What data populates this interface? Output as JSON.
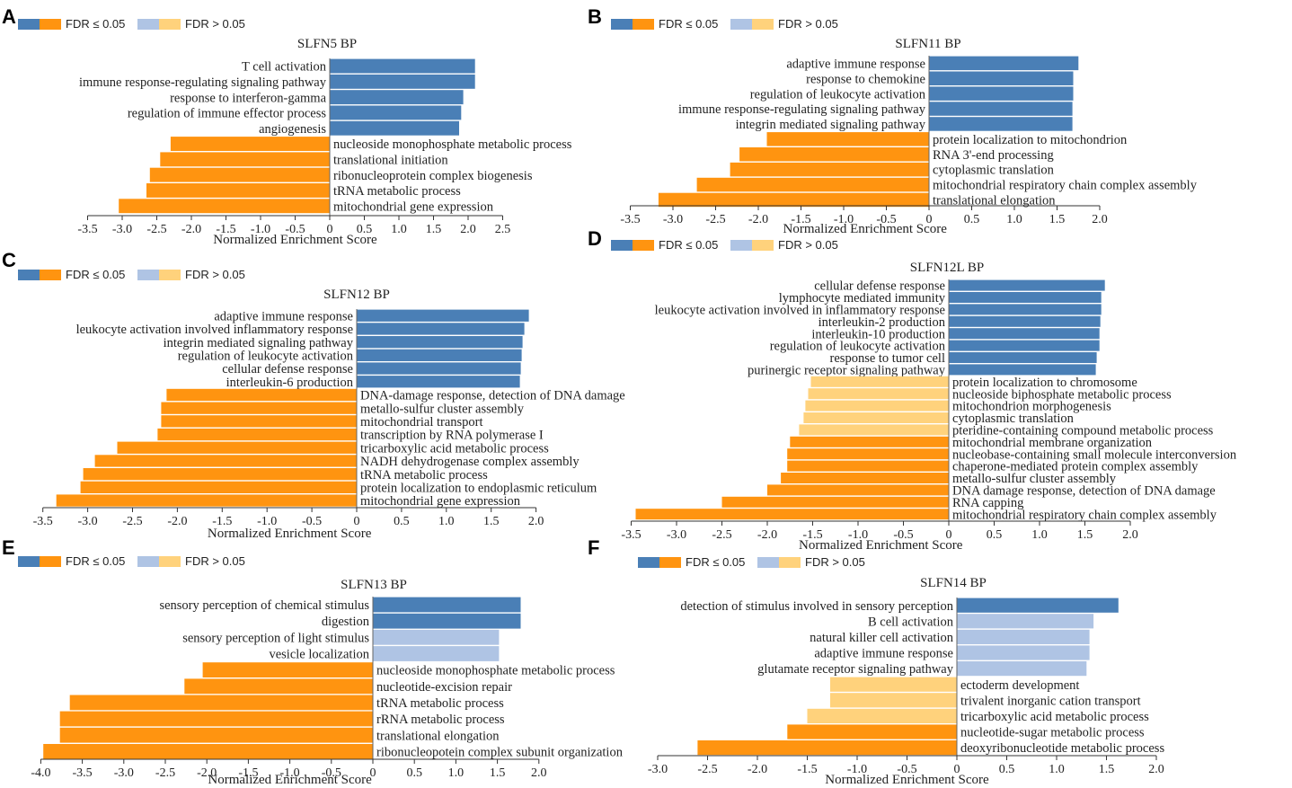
{
  "colors": {
    "blue_sig": "#4a7fb6",
    "orange_sig": "#ff9410",
    "blue_nonsig": "#afc4e4",
    "orange_nonsig": "#ffd27c"
  },
  "legend": {
    "sig_label": "FDR ≤ 0.05",
    "nonsig_label": "FDR > 0.05"
  },
  "chart_data": [
    {
      "panel": "A",
      "type": "bar",
      "orientation": "horizontal",
      "title": "SLFN5 BP",
      "xlabel": "Normalized Enrichment Score",
      "xlim": [
        -3.5,
        2.5
      ],
      "xticks": [
        -3.5,
        -3.0,
        -2.5,
        -2.0,
        -1.5,
        -1.0,
        -0.5,
        0,
        0.5,
        1.0,
        1.5,
        2.0,
        2.5
      ],
      "bars": [
        {
          "term": "T cell activation",
          "nes": 2.1,
          "significant": true
        },
        {
          "term": "immune response-regulating signaling pathway",
          "nes": 2.1,
          "significant": true
        },
        {
          "term": "response to interferon-gamma",
          "nes": 1.93,
          "significant": true
        },
        {
          "term": "regulation of immune effector process",
          "nes": 1.9,
          "significant": true
        },
        {
          "term": "angiogenesis",
          "nes": 1.87,
          "significant": true
        },
        {
          "term": "nucleoside monophosphate metabolic process",
          "nes": -2.3,
          "significant": true
        },
        {
          "term": "translational initiation",
          "nes": -2.45,
          "significant": true
        },
        {
          "term": "ribonucleoprotein complex biogenesis",
          "nes": -2.6,
          "significant": true
        },
        {
          "term": "tRNA metabolic process",
          "nes": -2.65,
          "significant": true
        },
        {
          "term": "mitochondrial gene expression",
          "nes": -3.05,
          "significant": true
        }
      ]
    },
    {
      "panel": "B",
      "type": "bar",
      "orientation": "horizontal",
      "title": "SLFN11 BP",
      "xlabel": "Normalized Enrichment Score",
      "xlim": [
        -3.5,
        2.0
      ],
      "xticks": [
        -3.5,
        -3.0,
        -2.5,
        -2.0,
        -1.5,
        -1.0,
        -0.5,
        0,
        0.5,
        1.0,
        1.5,
        2.0
      ],
      "bars": [
        {
          "term": "adaptive immune response",
          "nes": 1.75,
          "significant": true
        },
        {
          "term": "response to chemokine",
          "nes": 1.69,
          "significant": true
        },
        {
          "term": "regulation of leukocyte activation",
          "nes": 1.69,
          "significant": true
        },
        {
          "term": "immune response-regulating signaling pathway",
          "nes": 1.68,
          "significant": true
        },
        {
          "term": "integrin mediated signaling pathway",
          "nes": 1.68,
          "significant": true
        },
        {
          "term": "protein localization to mitochondrion",
          "nes": -1.9,
          "significant": true
        },
        {
          "term": "RNA 3'-end processing",
          "nes": -2.22,
          "significant": true
        },
        {
          "term": "cytoplasmic translation",
          "nes": -2.33,
          "significant": true
        },
        {
          "term": "mitochondrial respiratory chain complex assembly",
          "nes": -2.72,
          "significant": true
        },
        {
          "term": "translational elongation",
          "nes": -3.17,
          "significant": true
        }
      ]
    },
    {
      "panel": "C",
      "type": "bar",
      "orientation": "horizontal",
      "title": "SLFN12 BP",
      "xlabel": "Normalized Enrichment Score",
      "xlim": [
        -3.5,
        2.0
      ],
      "xticks": [
        -3.5,
        -3.0,
        -2.5,
        -2.0,
        -1.5,
        -1.0,
        -0.5,
        0,
        0.5,
        1.0,
        1.5,
        2.0
      ],
      "bars": [
        {
          "term": "adaptive immune response",
          "nes": 1.92,
          "significant": true
        },
        {
          "term": "leukocyte activation involved inflammatory response",
          "nes": 1.87,
          "significant": true
        },
        {
          "term": "integrin mediated signaling pathway",
          "nes": 1.85,
          "significant": true
        },
        {
          "term": "regulation of leukocyte activation",
          "nes": 1.84,
          "significant": true
        },
        {
          "term": "cellular defense response",
          "nes": 1.83,
          "significant": true
        },
        {
          "term": "interleukin-6 production",
          "nes": 1.82,
          "significant": true
        },
        {
          "term": "DNA-damage response, detection of DNA damage",
          "nes": -2.12,
          "significant": true
        },
        {
          "term": "metallo-sulfur cluster assembly",
          "nes": -2.18,
          "significant": true
        },
        {
          "term": "mitochondrial transport",
          "nes": -2.18,
          "significant": true
        },
        {
          "term": "transcription by RNA polymerase I",
          "nes": -2.22,
          "significant": true
        },
        {
          "term": "tricarboxylic acid metabolic process",
          "nes": -2.67,
          "significant": true
        },
        {
          "term": "NADH dehydrogenase complex assembly",
          "nes": -2.92,
          "significant": true
        },
        {
          "term": "tRNA metabolic process",
          "nes": -3.05,
          "significant": true
        },
        {
          "term": "protein localization to endoplasmic reticulum",
          "nes": -3.08,
          "significant": true
        },
        {
          "term": "mitochondrial gene expression",
          "nes": -3.35,
          "significant": true
        }
      ]
    },
    {
      "panel": "D",
      "type": "bar",
      "orientation": "horizontal",
      "title": "SLFN12L BP",
      "xlabel": "Normalized Enrichment Score",
      "xlim": [
        -3.5,
        2.0
      ],
      "xticks": [
        -3.5,
        -3.0,
        -2.5,
        -2.0,
        -1.5,
        -1.0,
        -0.5,
        0,
        0.5,
        1.0,
        1.5,
        2.0
      ],
      "bars": [
        {
          "term": "cellular defense response",
          "nes": 1.72,
          "significant": true
        },
        {
          "term": "lymphocyte mediated immunity",
          "nes": 1.68,
          "significant": true
        },
        {
          "term": "leukocyte activation involved in inflammatory response",
          "nes": 1.68,
          "significant": true
        },
        {
          "term": "interleukin-2 production",
          "nes": 1.67,
          "significant": true
        },
        {
          "term": "interleukin-10 production",
          "nes": 1.66,
          "significant": true
        },
        {
          "term": "regulation of leukocyte activation",
          "nes": 1.66,
          "significant": true
        },
        {
          "term": "response to tumor cell",
          "nes": 1.63,
          "significant": true
        },
        {
          "term": "purinergic receptor signaling pathway",
          "nes": 1.62,
          "significant": true
        },
        {
          "term": "protein localization to chromosome",
          "nes": -1.52,
          "significant": false
        },
        {
          "term": "nucleoside biphosphate metabolic process",
          "nes": -1.55,
          "significant": false
        },
        {
          "term": "mitochondrion morphogenesis",
          "nes": -1.58,
          "significant": false
        },
        {
          "term": "cytoplasmic translation",
          "nes": -1.6,
          "significant": false
        },
        {
          "term": "pteridine-containing compound metabolic process",
          "nes": -1.65,
          "significant": false
        },
        {
          "term": "mitochondrial membrane organization",
          "nes": -1.75,
          "significant": true
        },
        {
          "term": "nucleobase-containing small molecule interconversion",
          "nes": -1.78,
          "significant": true
        },
        {
          "term": "chaperone-mediated protein complex assembly",
          "nes": -1.78,
          "significant": true
        },
        {
          "term": "metallo-sulfur cluster assembly",
          "nes": -1.85,
          "significant": true
        },
        {
          "term": "DNA damage response, detection of DNA damage",
          "nes": -2.0,
          "significant": true
        },
        {
          "term": "RNA capping",
          "nes": -2.5,
          "significant": true
        },
        {
          "term": "mitochondrial respiratory chain complex assembly",
          "nes": -3.45,
          "significant": true
        }
      ]
    },
    {
      "panel": "E",
      "type": "bar",
      "orientation": "horizontal",
      "title": "SLFN13 BP",
      "xlabel": "Normalized Enrichment Score",
      "xlim": [
        -4.0,
        2.0
      ],
      "xticks": [
        -4.0,
        -3.5,
        -3.0,
        -2.5,
        -2.0,
        -1.5,
        -1.0,
        -0.5,
        0,
        0.5,
        1.0,
        1.5,
        2.0
      ],
      "bars": [
        {
          "term": "sensory perception of chemical stimulus",
          "nes": 1.78,
          "significant": true
        },
        {
          "term": "digestion",
          "nes": 1.78,
          "significant": true
        },
        {
          "term": "sensory perception of light stimulus",
          "nes": 1.52,
          "significant": false
        },
        {
          "term": "vesicle localization",
          "nes": 1.52,
          "significant": false
        },
        {
          "term": "nucleoside monophosphate metabolic process",
          "nes": -2.05,
          "significant": true
        },
        {
          "term": "nucleotide-excision repair",
          "nes": -2.27,
          "significant": true
        },
        {
          "term": "tRNA metabolic process",
          "nes": -3.65,
          "significant": true
        },
        {
          "term": "rRNA metabolic process",
          "nes": -3.77,
          "significant": true
        },
        {
          "term": "translational elongation",
          "nes": -3.77,
          "significant": true
        },
        {
          "term": "ribonucleopotein complex subunit organization",
          "nes": -3.97,
          "significant": true
        }
      ]
    },
    {
      "panel": "F",
      "type": "bar",
      "orientation": "horizontal",
      "title": "SLFN14 BP",
      "xlabel": "Normalized Enrichment Score",
      "xlim": [
        -3.0,
        2.0
      ],
      "xticks": [
        -3.0,
        -2.5,
        -2.0,
        -1.5,
        -1.0,
        -0.5,
        0,
        0.5,
        1.0,
        1.5,
        2.0
      ],
      "bars": [
        {
          "term": "detection of stimulus involved in sensory perception",
          "nes": 1.62,
          "significant": true
        },
        {
          "term": "B cell activation",
          "nes": 1.37,
          "significant": false
        },
        {
          "term": "natural killer cell activation",
          "nes": 1.33,
          "significant": false
        },
        {
          "term": "adaptive immune response",
          "nes": 1.33,
          "significant": false
        },
        {
          "term": "glutamate receptor signaling pathway",
          "nes": 1.3,
          "significant": false
        },
        {
          "term": "ectoderm development",
          "nes": -1.27,
          "significant": false
        },
        {
          "term": "trivalent inorganic cation transport",
          "nes": -1.27,
          "significant": false
        },
        {
          "term": "tricarboxylic acid metabolic process",
          "nes": -1.5,
          "significant": false
        },
        {
          "term": "nucleotide-sugar metabolic process",
          "nes": -1.7,
          "significant": true
        },
        {
          "term": "deoxyribonucleotide metabolic process",
          "nes": -2.6,
          "significant": true
        }
      ]
    }
  ]
}
